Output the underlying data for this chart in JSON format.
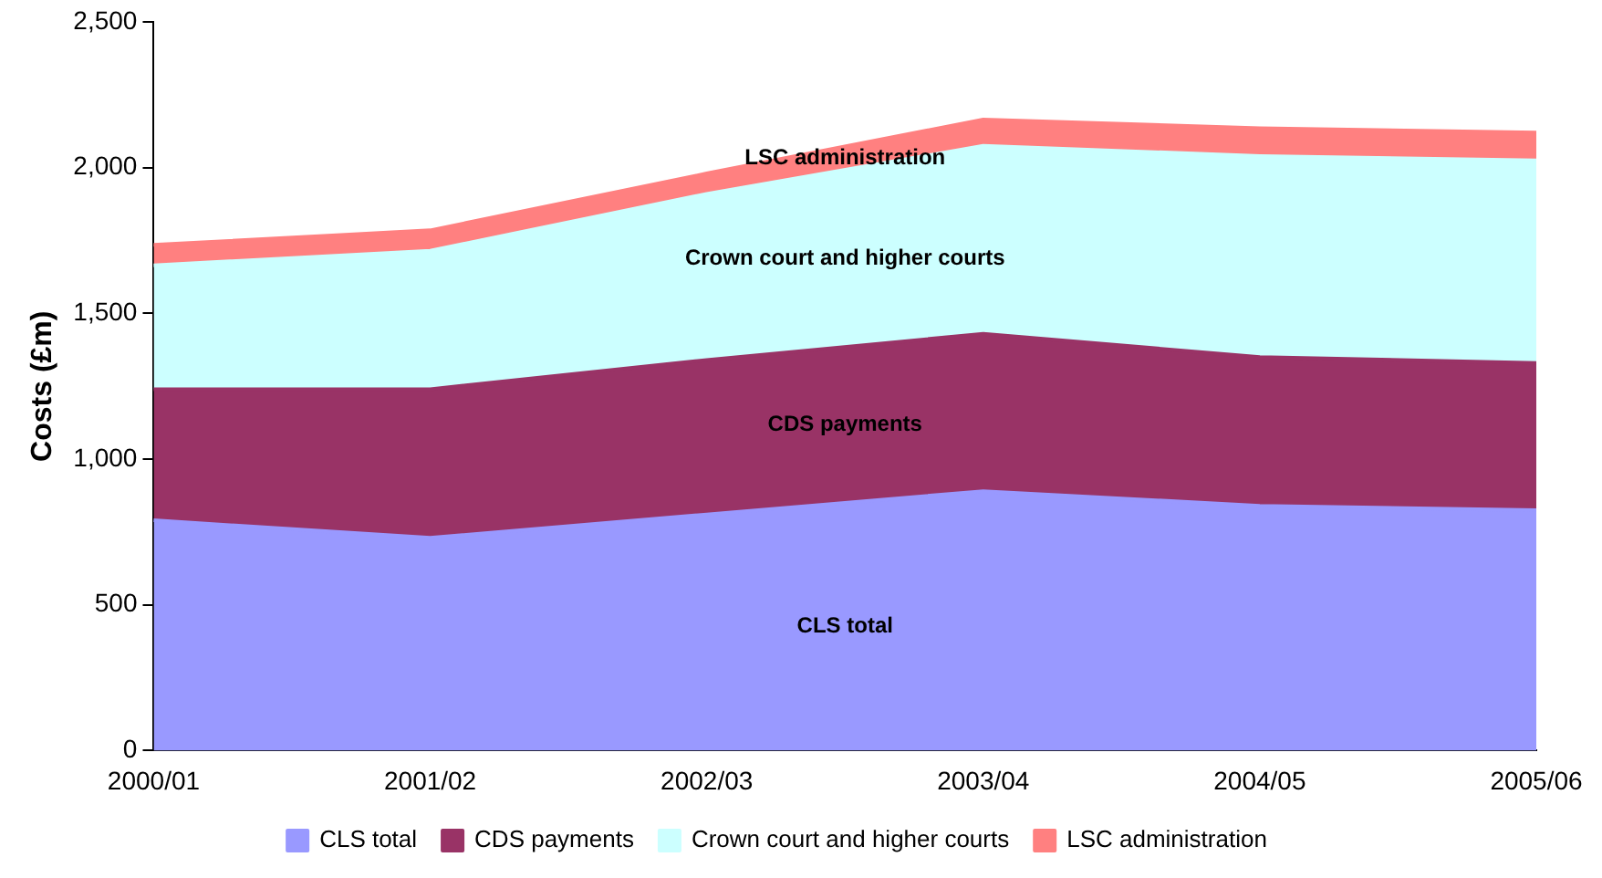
{
  "chart_data": {
    "type": "area",
    "stacked": true,
    "ylabel": "Costs (£m)",
    "categories": [
      "2000/01",
      "2001/02",
      "2002/03",
      "2003/04",
      "2004/05",
      "2005/06"
    ],
    "series": [
      {
        "name": "CLS total",
        "color": "#9999ff",
        "values": [
          790,
          730,
          810,
          890,
          840,
          825
        ]
      },
      {
        "name": "CDS payments",
        "color": "#993366",
        "values": [
          450,
          510,
          530,
          540,
          510,
          505
        ]
      },
      {
        "name": "Crown court and higher courts",
        "color": "#ccffff",
        "values": [
          425,
          475,
          570,
          645,
          690,
          695
        ]
      },
      {
        "name": "LSC administration",
        "color": "#ff8080",
        "values": [
          70,
          70,
          70,
          90,
          95,
          95
        ]
      }
    ],
    "ylim": [
      0,
      2500
    ],
    "yticks": [
      0,
      {
        "value": 500,
        "label": "500"
      },
      {
        "value": 1000,
        "label": "1,000"
      },
      {
        "value": 1500,
        "label": "1,500"
      },
      {
        "value": 2000,
        "label": "2,000"
      },
      {
        "value": 2500,
        "label": "2,500"
      }
    ],
    "grid": false,
    "legend": "bottom"
  }
}
